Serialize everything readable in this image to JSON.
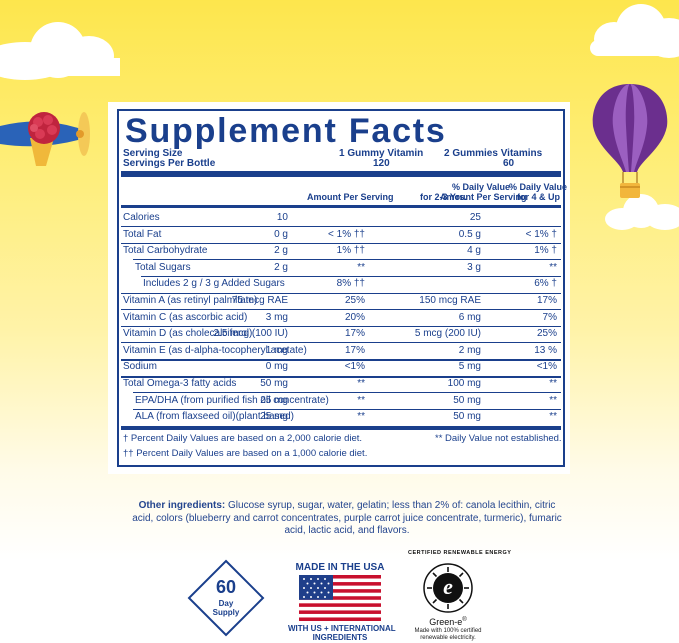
{
  "facts": {
    "title": "Supplement Facts",
    "serving_size_label": "Serving Size",
    "servings_per_label": "Servings Per Bottle",
    "col1_serving": "1 Gummy Vitamin",
    "col1_servings": "120",
    "col2_serving": "2 Gummies Vitamins",
    "col2_servings": "60",
    "head_amount_1": "Amount Per Serving",
    "head_dv_1_a": "% Daily Value",
    "head_dv_1_b": "for 2-3 Yrs.",
    "head_amount_2": "Amount Per Serving",
    "head_dv_2_a": "% Daily Value",
    "head_dv_2_b": "for 4 & Up",
    "rows": [
      {
        "label": "Calories",
        "a1": "10",
        "d1": "",
        "a2": "25",
        "d2": ""
      },
      {
        "label": "Total Fat",
        "a1": "0 g",
        "d1": "< 1% ††",
        "a2": "0.5 g",
        "d2": "< 1% †"
      },
      {
        "label": "Total Carbohydrate",
        "a1": "2 g",
        "d1": "1% ††",
        "a2": "4 g",
        "d2": "1% †"
      },
      {
        "label": "Total Sugars",
        "a1": "2 g",
        "d1": "**",
        "a2": "3 g",
        "d2": "**"
      },
      {
        "label": "Includes 2 g / 3 g Added Sugars",
        "a1": "",
        "d1": "8% ††",
        "a2": "",
        "d2": "6% †"
      },
      {
        "label": "Vitamin A (as retinyl palmitate)",
        "a1": "75 mcg RAE",
        "d1": "25%",
        "a2": "150 mcg RAE",
        "d2": "17%"
      },
      {
        "label": "Vitamin C (as ascorbic acid)",
        "a1": "3 mg",
        "d1": "20%",
        "a2": "6 mg",
        "d2": "7%"
      },
      {
        "label": "Vitamin D (as cholecalciferol)",
        "a1": "2.5 mcg (100 IU)",
        "d1": "17%",
        "a2": "5 mcg (200 IU)",
        "d2": "25%"
      },
      {
        "label": "Vitamin E (as d-alpha-tocopheryl acetate)",
        "a1": "1 mg",
        "d1": "17%",
        "a2": "2 mg",
        "d2": "13 %"
      },
      {
        "label": "Sodium",
        "a1": "0 mg",
        "d1": "<1%",
        "a2": "5 mg",
        "d2": "<1%"
      },
      {
        "label": "Total Omega-3 fatty acids",
        "a1": "50 mg",
        "d1": "**",
        "a2": "100 mg",
        "d2": "**"
      },
      {
        "label": "EPA/DHA (from purified fish oil concentrate)",
        "a1": "25 mg",
        "d1": "**",
        "a2": "50 mg",
        "d2": "**"
      },
      {
        "label": "ALA (from flaxseed oil)(plant based)",
        "a1": "25 mg",
        "d1": "**",
        "a2": "50 mg",
        "d2": "**"
      }
    ],
    "footnote_1": "† Percent Daily Values are based on a 2,000 calorie diet.",
    "footnote_2": "†† Percent Daily Values are based on a 1,000 calorie diet.",
    "footnote_3": "** Daily Value not established."
  },
  "ingredients": {
    "label": "Other ingredients:",
    "text": "Glucose syrup, sugar, water, gelatin; less than 2% of: canola lecithin, citric acid, colors (blueberry and carrot concentrates, purple carrot juice concentrate, turmeric), fumaric acid, lactic acid, and flavors."
  },
  "badges": {
    "supply_number": "60",
    "supply_line1": "Day",
    "supply_line2": "Supply",
    "usa_title": "MADE IN THE USA",
    "usa_sub1": "WITH US + INTERNATIONAL",
    "usa_sub2": "INGREDIENTS",
    "greene_ring": "CERTIFIED RENEWABLE ENERGY",
    "greene_letter": "e",
    "greene_name": "Green-e",
    "greene_reg": "®",
    "greene_sub1": "Made with 100% certified",
    "greene_sub2": "renewable electricity."
  },
  "colors": {
    "navy": "#1a3f8c",
    "sky_yellow": "#fde64d",
    "flag_red": "#c8102e",
    "flag_blue": "#1f3f8a",
    "balloon_purple": "#6b2f8e"
  },
  "icons": [
    "airplane-icon",
    "raspberry-icon",
    "hot-air-balloon-icon",
    "cloud-icon",
    "us-flag-icon",
    "green-e-icon"
  ]
}
